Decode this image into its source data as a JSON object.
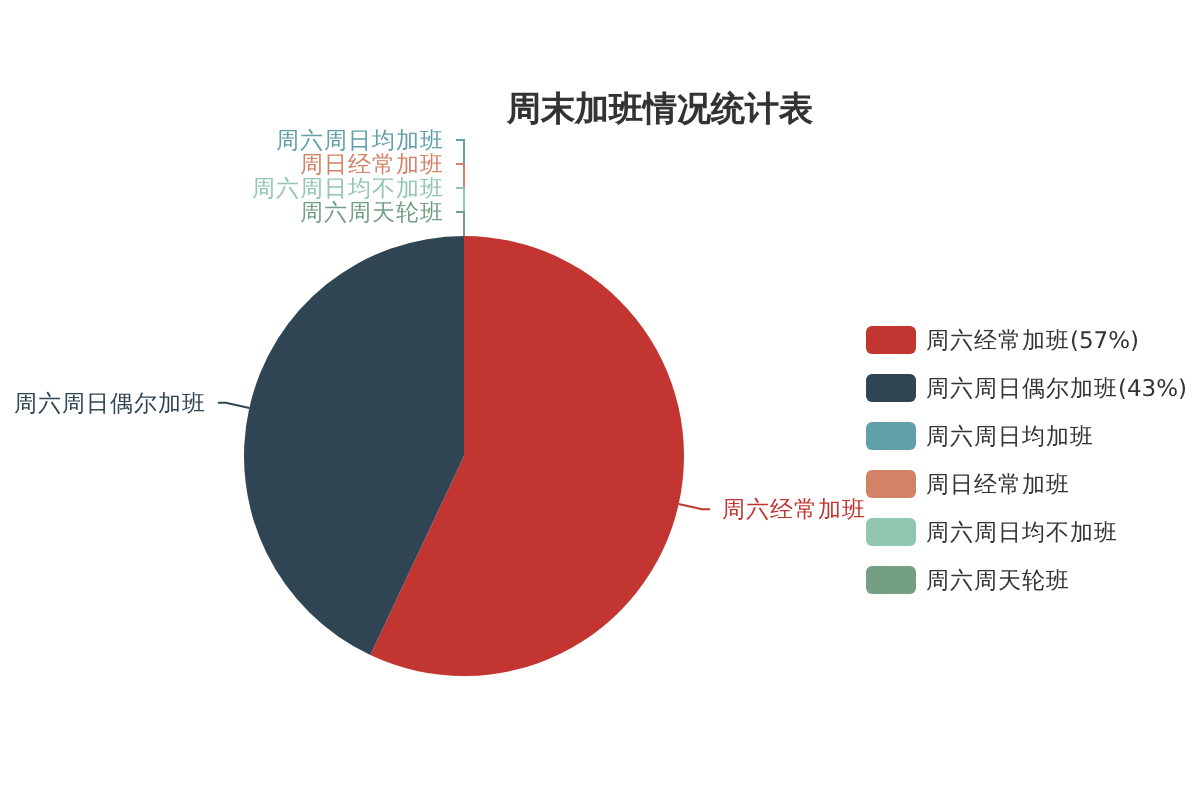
{
  "chart_data": {
    "type": "pie",
    "title": "周末加班情况统计表",
    "categories": [
      "周六经常加班",
      "周六周日偶尔加班",
      "周六周日均加班",
      "周日经常加班",
      "周六周日均不加班",
      "周六周天轮班"
    ],
    "values": [
      57,
      43,
      0,
      0,
      0,
      0
    ],
    "value_labels": [
      "(57%)",
      "(43%)",
      null,
      null,
      null,
      null
    ],
    "colors": [
      "#c23531",
      "#2f4554",
      "#61a0a8",
      "#d48265",
      "#91c7ae",
      "#749f83"
    ],
    "legend": "right"
  }
}
